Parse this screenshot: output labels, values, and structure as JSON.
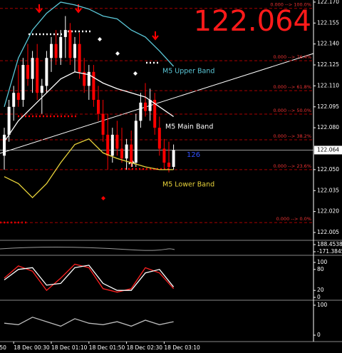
{
  "chart_data": [
    {
      "type": "candlestick",
      "last": 122.064,
      "count_label": "126",
      "up_color": "#ffffff",
      "down_color": "#ff0000",
      "open": [
        122.06,
        122.075,
        122.095,
        122.105,
        122.1,
        122.125,
        122.115,
        122.13,
        122.105,
        122.11,
        122.13,
        122.14,
        122.13,
        122.145,
        122.15,
        122.13,
        122.14,
        122.12,
        122.11,
        122.12,
        122.1,
        122.09,
        122.075,
        122.06,
        122.075,
        122.065,
        122.058,
        122.068,
        122.055,
        122.085,
        122.098,
        122.092,
        122.1,
        122.08,
        122.065,
        122.055,
        122.052
      ],
      "high": [
        122.08,
        122.1,
        122.11,
        122.125,
        122.13,
        122.14,
        122.135,
        122.14,
        122.115,
        122.135,
        122.145,
        122.15,
        122.15,
        122.16,
        122.155,
        122.145,
        122.148,
        122.13,
        122.125,
        122.125,
        122.11,
        122.1,
        122.09,
        122.08,
        122.085,
        122.08,
        122.072,
        122.078,
        122.09,
        122.105,
        122.112,
        122.108,
        122.105,
        122.088,
        122.072,
        122.07,
        122.068
      ],
      "low": [
        122.05,
        122.07,
        122.085,
        122.095,
        122.095,
        122.11,
        122.105,
        122.1,
        122.09,
        122.105,
        122.12,
        122.125,
        122.125,
        122.13,
        122.125,
        122.12,
        122.115,
        122.105,
        122.1,
        122.095,
        122.085,
        122.07,
        122.05,
        122.055,
        122.06,
        122.055,
        122.05,
        122.052,
        122.052,
        122.08,
        122.088,
        122.085,
        122.075,
        122.06,
        122.05,
        122.048,
        122.05
      ],
      "close": [
        122.075,
        122.095,
        122.105,
        122.1,
        122.125,
        122.115,
        122.13,
        122.105,
        122.11,
        122.13,
        122.14,
        122.13,
        122.145,
        122.15,
        122.13,
        122.14,
        122.12,
        122.11,
        122.12,
        122.1,
        122.09,
        122.075,
        122.06,
        122.075,
        122.065,
        122.058,
        122.068,
        122.055,
        122.085,
        122.098,
        122.092,
        122.1,
        122.08,
        122.065,
        122.055,
        122.052,
        122.064
      ],
      "series": [
        {
          "name": "M5 Upper Band",
          "color": "#5bc8d8",
          "x": [
            0,
            3,
            6,
            9,
            12,
            15,
            18,
            21,
            24,
            27,
            30,
            33,
            36
          ],
          "values": [
            122.095,
            122.13,
            122.15,
            122.162,
            122.17,
            122.168,
            122.165,
            122.16,
            122.158,
            122.15,
            122.145,
            122.135,
            122.124
          ]
        },
        {
          "name": "M5 Main Band",
          "color": "#ffffff",
          "x": [
            0,
            3,
            6,
            9,
            12,
            15,
            18,
            21,
            24,
            27,
            30,
            33,
            36
          ],
          "values": [
            122.07,
            122.085,
            122.095,
            122.105,
            122.115,
            122.12,
            122.118,
            122.112,
            122.108,
            122.105,
            122.102,
            122.095,
            122.088
          ]
        },
        {
          "name": "M5 Lower Band",
          "color": "#e8d33a",
          "x": [
            0,
            3,
            6,
            9,
            12,
            15,
            18,
            21,
            24,
            27,
            30,
            33,
            36
          ],
          "values": [
            122.045,
            122.04,
            122.03,
            122.04,
            122.055,
            122.068,
            122.072,
            122.062,
            122.058,
            122.055,
            122.052,
            122.05,
            122.05
          ]
        }
      ],
      "ylim": [
        122.0004,
        122.1715
      ],
      "yticks": [
        {
          "value": 122.17,
          "label": "122.170"
        },
        122.155,
        {
          "value": 122.14,
          "label": "122.140"
        },
        122.125,
        {
          "value": 122.11,
          "label": "122.110"
        },
        122.095,
        {
          "value": 122.08,
          "label": "122.080"
        },
        {
          "value": 122.05,
          "label": "122.050"
        },
        122.035,
        {
          "value": 122.02,
          "label": "122.020"
        },
        122.005
      ],
      "fib_levels": [
        {
          "value": 122.1655,
          "label": "0.000 --> 100.0%"
        },
        {
          "value": 122.128,
          "label": "0.000 --> 76.4%"
        },
        {
          "value": 122.1066,
          "label": "0.000 --> 61.8%"
        },
        {
          "value": 122.0898,
          "label": "0.000 --> 50.0%"
        },
        {
          "value": 122.0714,
          "label": "0.000 --> 38.2%"
        },
        {
          "value": 122.05,
          "label": "0.000 --> 23.6%"
        },
        {
          "value": 122.0121,
          "label": "0.000 --> 0.0%"
        }
      ],
      "xticks": [
        {
          "value": -1,
          "label": "50"
        },
        {
          "value": 2,
          "label": "18 Dec 00:30"
        },
        {
          "value": 10,
          "label": "18 Dec 01:10"
        },
        {
          "value": 18,
          "label": "18 Dec 01:50"
        },
        {
          "value": 26,
          "label": "18 Dec 02:30"
        },
        {
          "value": 34,
          "label": "18 Dec 03:10"
        }
      ]
    },
    {
      "type": "line",
      "ylim": [
        -171.3845,
        188.4538
      ],
      "yticks": [
        188.4538,
        -171.3845
      ],
      "series": []
    },
    {
      "type": "line",
      "ylim": [
        0,
        100
      ],
      "yticks": [
        100,
        80,
        20,
        0
      ],
      "series": [
        {
          "color": "#ff2020",
          "x": [
            0,
            3,
            6,
            9,
            12,
            15,
            18,
            21,
            24,
            27,
            30,
            33,
            36
          ],
          "values": [
            55,
            90,
            75,
            20,
            55,
            95,
            85,
            25,
            15,
            25,
            85,
            70,
            25
          ]
        },
        {
          "color": "#ffffff",
          "x": [
            0,
            3,
            6,
            9,
            12,
            15,
            18,
            21,
            24,
            27,
            30,
            33,
            36
          ],
          "values": [
            50,
            80,
            85,
            35,
            40,
            85,
            92,
            40,
            20,
            20,
            70,
            80,
            30
          ]
        }
      ]
    },
    {
      "type": "line",
      "ylim": [
        0,
        100
      ],
      "yticks": [
        100,
        0
      ],
      "series": [
        {
          "color": "#bbbbbb",
          "x": [
            0,
            3,
            6,
            9,
            12,
            15,
            18,
            21,
            24,
            27,
            30,
            33,
            36
          ],
          "values": [
            40,
            35,
            60,
            45,
            30,
            55,
            40,
            35,
            45,
            30,
            50,
            35,
            45
          ]
        }
      ]
    }
  ]
}
